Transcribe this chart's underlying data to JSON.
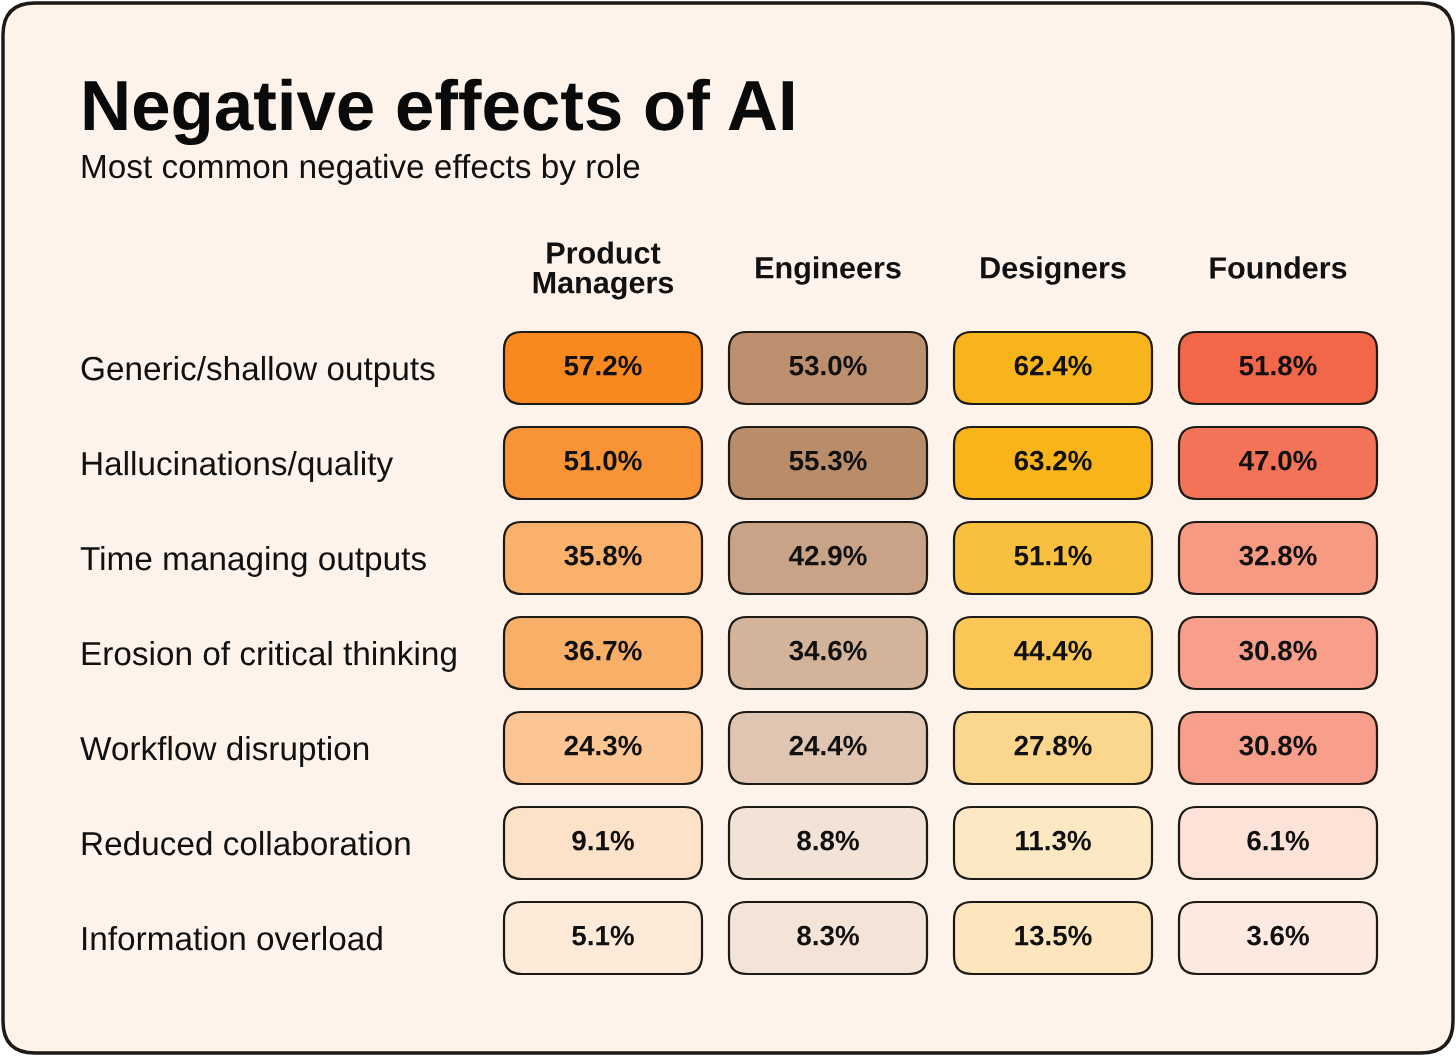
{
  "chart_data": {
    "type": "heatmap",
    "title": "Negative effects of AI",
    "subtitle": "Most common negative effects by role",
    "categories": [
      "Product\nManagers",
      "Engineers",
      "Designers",
      "Founders"
    ],
    "y_categories": [
      "Generic/shallow outputs",
      "Hallucinations/quality",
      "Time managing outputs",
      "Erosion of critical thinking",
      "Workflow disruption",
      "Reduced collaboration",
      "Information overload"
    ],
    "cells": [
      [
        57.2,
        53.0,
        62.4,
        51.8
      ],
      [
        51.0,
        55.3,
        63.2,
        47.0
      ],
      [
        35.8,
        42.9,
        51.1,
        32.8
      ],
      [
        36.7,
        34.6,
        44.4,
        30.8
      ],
      [
        24.3,
        24.4,
        27.8,
        30.8
      ],
      [
        9.1,
        8.8,
        11.3,
        6.1
      ],
      [
        5.1,
        8.3,
        13.5,
        3.6
      ]
    ],
    "cell_labels": [
      [
        "57.2%",
        "53.0%",
        "62.4%",
        "51.8%"
      ],
      [
        "51.0%",
        "55.3%",
        "63.2%",
        "47.0%"
      ],
      [
        "35.8%",
        "42.9%",
        "51.1%",
        "32.8%"
      ],
      [
        "36.7%",
        "34.6%",
        "44.4%",
        "30.8%"
      ],
      [
        "24.3%",
        "24.4%",
        "27.8%",
        "30.8%"
      ],
      [
        "9.1%",
        "8.8%",
        "11.3%",
        "6.1%"
      ],
      [
        "5.1%",
        "8.3%",
        "13.5%",
        "3.6%"
      ]
    ],
    "colors": [
      "#f7891f",
      "#b98c6a",
      "#f8b418",
      "#f26649"
    ]
  }
}
